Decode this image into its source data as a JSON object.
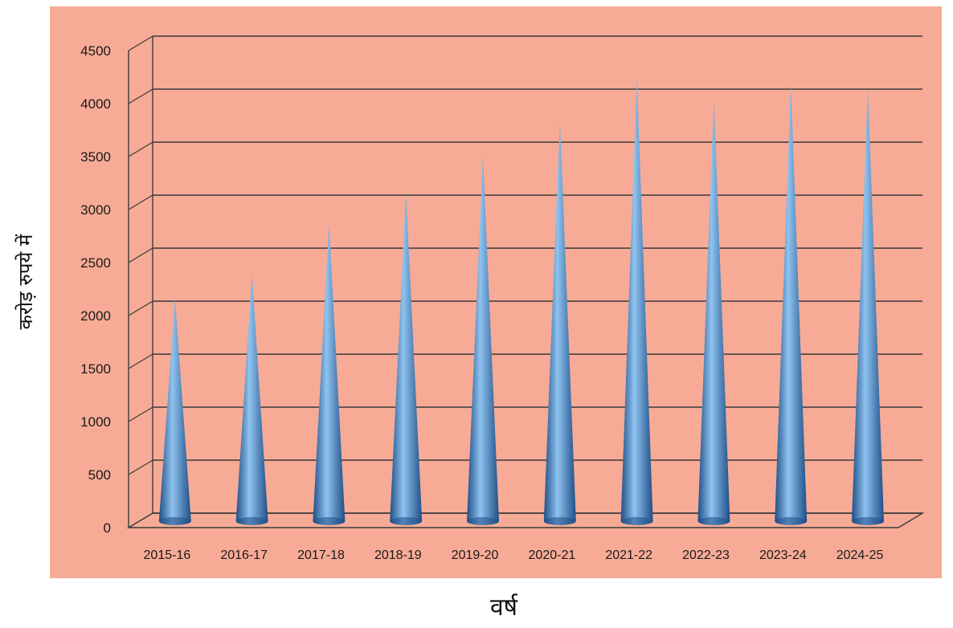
{
  "chart_data": {
    "type": "bar",
    "style": "3d-cone",
    "categories": [
      "2015-16",
      "2016-17",
      "2017-18",
      "2018-19",
      "2019-20",
      "2020-21",
      "2021-22",
      "2022-23",
      "2023-24",
      "2024-25"
    ],
    "values": [
      2090,
      2320,
      2800,
      3090,
      3440,
      3770,
      4170,
      3960,
      4110,
      4080
    ],
    "title": "",
    "xlabel": "वर्ष",
    "ylabel": "करोड़ रुपये में",
    "ylim": [
      0,
      4500
    ],
    "yticks": [
      0,
      500,
      1000,
      1500,
      2000,
      2500,
      3000,
      3500,
      4000,
      4500
    ],
    "grid": true,
    "legend": "none",
    "colors": {
      "plot_background": "#f7ab96",
      "bar": "#3c82c8",
      "bar_dark": "#1f4f88",
      "bar_light": "#8fc3ef",
      "gridline": "#3a3a3a"
    }
  }
}
